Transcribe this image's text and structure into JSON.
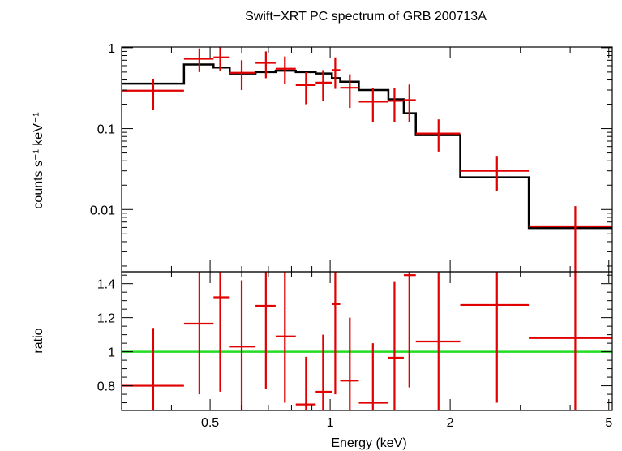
{
  "chart_data": {
    "type": "scatter",
    "title": "Swift−XRT PC spectrum of GRB 200713A",
    "xlabel": "Energy (keV)",
    "x_scale": "log",
    "xlim": [
      0.3,
      5.1
    ],
    "x_ticks": [
      {
        "value": 0.5,
        "label": "0.5"
      },
      {
        "value": 1,
        "label": "1"
      },
      {
        "value": 2,
        "label": "2"
      },
      {
        "value": 5,
        "label": "5"
      }
    ],
    "colors": {
      "data": "#e00000",
      "model": "#000000",
      "unity": "#22dd22",
      "frame": "#000000"
    },
    "top_panel": {
      "ylabel": "counts s⁻¹ keV⁻¹",
      "y_scale": "log",
      "ylim": [
        0.0017,
        1.02
      ],
      "y_ticks": [
        {
          "value": 1,
          "label": "1"
        },
        {
          "value": 0.1,
          "label": "0.1"
        },
        {
          "value": 0.01,
          "label": "0.01"
        }
      ],
      "data": [
        {
          "x": 0.36,
          "xlo": 0.3,
          "xhi": 0.43,
          "y": 0.295,
          "ylo": 0.17,
          "yhi": 0.41
        },
        {
          "x": 0.47,
          "xlo": 0.43,
          "xhi": 0.51,
          "y": 0.73,
          "ylo": 0.5,
          "yhi": 0.98
        },
        {
          "x": 0.53,
          "xlo": 0.51,
          "xhi": 0.56,
          "y": 0.76,
          "ylo": 0.51,
          "yhi": 1.02
        },
        {
          "x": 0.6,
          "xlo": 0.56,
          "xhi": 0.65,
          "y": 0.49,
          "ylo": 0.3,
          "yhi": 0.7
        },
        {
          "x": 0.69,
          "xlo": 0.65,
          "xhi": 0.73,
          "y": 0.65,
          "ylo": 0.42,
          "yhi": 0.9
        },
        {
          "x": 0.77,
          "xlo": 0.73,
          "xhi": 0.82,
          "y": 0.55,
          "ylo": 0.36,
          "yhi": 0.78
        },
        {
          "x": 0.87,
          "xlo": 0.82,
          "xhi": 0.92,
          "y": 0.345,
          "ylo": 0.2,
          "yhi": 0.5
        },
        {
          "x": 0.96,
          "xlo": 0.92,
          "xhi": 1.01,
          "y": 0.37,
          "ylo": 0.22,
          "yhi": 0.53
        },
        {
          "x": 1.03,
          "xlo": 1.01,
          "xhi": 1.06,
          "y": 0.53,
          "ylo": 0.31,
          "yhi": 0.76
        },
        {
          "x": 1.12,
          "xlo": 1.06,
          "xhi": 1.18,
          "y": 0.32,
          "ylo": 0.18,
          "yhi": 0.47
        },
        {
          "x": 1.28,
          "xlo": 1.18,
          "xhi": 1.4,
          "y": 0.215,
          "ylo": 0.12,
          "yhi": 0.32
        },
        {
          "x": 1.45,
          "xlo": 1.4,
          "xhi": 1.53,
          "y": 0.22,
          "ylo": 0.12,
          "yhi": 0.32
        },
        {
          "x": 1.58,
          "xlo": 1.53,
          "xhi": 1.64,
          "y": 0.225,
          "ylo": 0.12,
          "yhi": 0.35
        },
        {
          "x": 1.87,
          "xlo": 1.64,
          "xhi": 2.12,
          "y": 0.087,
          "ylo": 0.052,
          "yhi": 0.13
        },
        {
          "x": 2.62,
          "xlo": 2.12,
          "xhi": 3.15,
          "y": 0.03,
          "ylo": 0.017,
          "yhi": 0.046
        },
        {
          "x": 4.12,
          "xlo": 3.15,
          "xhi": 5.1,
          "y": 0.0062,
          "ylo": 0.0017,
          "yhi": 0.011
        }
      ],
      "model": [
        {
          "xlo": 0.3,
          "xhi": 0.43,
          "y": 0.36
        },
        {
          "xlo": 0.43,
          "xhi": 0.51,
          "y": 0.62
        },
        {
          "xlo": 0.51,
          "xhi": 0.56,
          "y": 0.57
        },
        {
          "xlo": 0.56,
          "xhi": 0.65,
          "y": 0.48
        },
        {
          "xlo": 0.65,
          "xhi": 0.73,
          "y": 0.5
        },
        {
          "xlo": 0.73,
          "xhi": 0.82,
          "y": 0.52
        },
        {
          "xlo": 0.82,
          "xhi": 0.92,
          "y": 0.5
        },
        {
          "xlo": 0.92,
          "xhi": 1.01,
          "y": 0.48
        },
        {
          "xlo": 1.01,
          "xhi": 1.06,
          "y": 0.42
        },
        {
          "xlo": 1.06,
          "xhi": 1.18,
          "y": 0.38
        },
        {
          "xlo": 1.18,
          "xhi": 1.4,
          "y": 0.3
        },
        {
          "xlo": 1.4,
          "xhi": 1.53,
          "y": 0.23
        },
        {
          "xlo": 1.53,
          "xhi": 1.64,
          "y": 0.155
        },
        {
          "xlo": 1.64,
          "xhi": 2.12,
          "y": 0.083
        },
        {
          "xlo": 2.12,
          "xhi": 3.15,
          "y": 0.025
        },
        {
          "xlo": 3.15,
          "xhi": 5.1,
          "y": 0.0059
        }
      ]
    },
    "bottom_panel": {
      "ylabel": "ratio",
      "y_scale": "linear",
      "ylim": [
        0.655,
        1.47
      ],
      "y_ticks": [
        {
          "value": 0.8,
          "label": "0.8"
        },
        {
          "value": 1,
          "label": "1"
        },
        {
          "value": 1.2,
          "label": "1.2"
        },
        {
          "value": 1.4,
          "label": "1.4"
        }
      ],
      "reference_line": 1.0,
      "data": [
        {
          "x": 0.36,
          "xlo": 0.3,
          "xhi": 0.43,
          "y": 0.8,
          "ylo": 0.655,
          "yhi": 1.14
        },
        {
          "x": 0.47,
          "xlo": 0.43,
          "xhi": 0.51,
          "y": 1.165,
          "ylo": 0.75,
          "yhi": 1.47
        },
        {
          "x": 0.53,
          "xlo": 0.51,
          "xhi": 0.56,
          "y": 1.32,
          "ylo": 0.765,
          "yhi": 1.47
        },
        {
          "x": 0.6,
          "xlo": 0.56,
          "xhi": 0.65,
          "y": 1.03,
          "ylo": 0.66,
          "yhi": 1.42
        },
        {
          "x": 0.69,
          "xlo": 0.65,
          "xhi": 0.73,
          "y": 1.27,
          "ylo": 0.78,
          "yhi": 1.47
        },
        {
          "x": 0.77,
          "xlo": 0.73,
          "xhi": 0.82,
          "y": 1.09,
          "ylo": 0.7,
          "yhi": 1.47
        },
        {
          "x": 0.87,
          "xlo": 0.82,
          "xhi": 0.92,
          "y": 0.69,
          "ylo": 0.655,
          "yhi": 0.97
        },
        {
          "x": 0.96,
          "xlo": 0.92,
          "xhi": 1.01,
          "y": 0.765,
          "ylo": 0.655,
          "yhi": 1.1
        },
        {
          "x": 1.03,
          "xlo": 1.01,
          "xhi": 1.06,
          "y": 1.28,
          "ylo": 0.75,
          "yhi": 1.47
        },
        {
          "x": 1.12,
          "xlo": 1.06,
          "xhi": 1.18,
          "y": 0.83,
          "ylo": 0.655,
          "yhi": 1.2
        },
        {
          "x": 1.28,
          "xlo": 1.18,
          "xhi": 1.4,
          "y": 0.7,
          "ylo": 0.655,
          "yhi": 1.05
        },
        {
          "x": 1.45,
          "xlo": 1.4,
          "xhi": 1.53,
          "y": 0.965,
          "ylo": 0.655,
          "yhi": 1.41
        },
        {
          "x": 1.58,
          "xlo": 1.53,
          "xhi": 1.64,
          "y": 1.45,
          "ylo": 0.79,
          "yhi": 1.47
        },
        {
          "x": 1.87,
          "xlo": 1.64,
          "xhi": 2.12,
          "y": 1.06,
          "ylo": 0.655,
          "yhi": 1.47
        },
        {
          "x": 2.62,
          "xlo": 2.12,
          "xhi": 3.15,
          "y": 1.275,
          "ylo": 0.7,
          "yhi": 1.47
        },
        {
          "x": 4.12,
          "xlo": 3.15,
          "xhi": 5.1,
          "y": 1.08,
          "ylo": 0.655,
          "yhi": 1.47
        }
      ]
    }
  }
}
